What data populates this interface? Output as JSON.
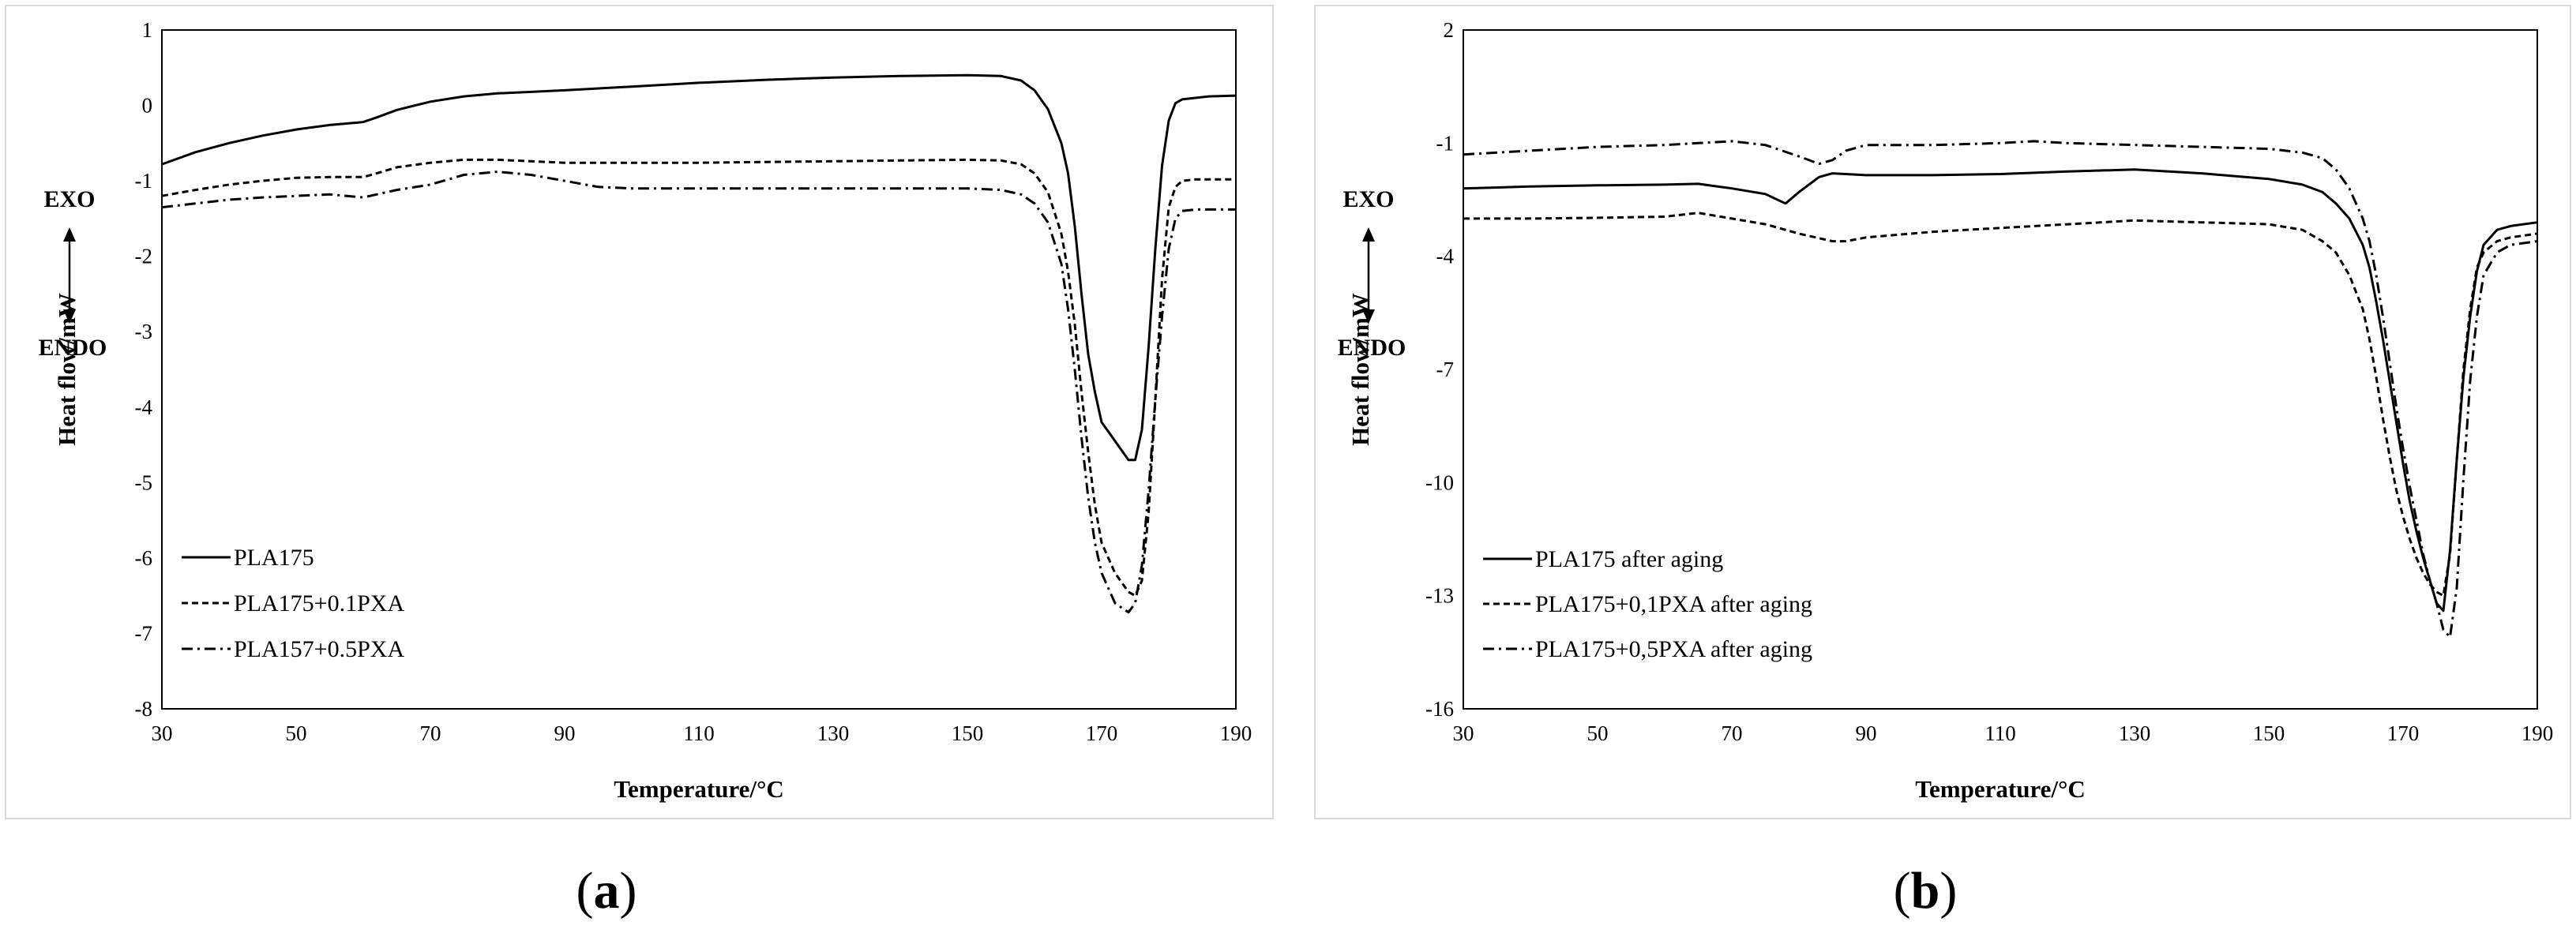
{
  "chart_data": [
    {
      "type": "line",
      "panel_label": {
        "open": "(",
        "letter": "a",
        "close": ")"
      },
      "xlabel": "Temperature/°C",
      "ylabel": "Heat flow/mW",
      "xlim": [
        30,
        190
      ],
      "ylim": [
        -8,
        1
      ],
      "xticks": [
        30,
        50,
        70,
        90,
        110,
        130,
        150,
        170,
        190
      ],
      "yticks": [
        -8,
        -7,
        -6,
        -5,
        -4,
        -3,
        -2,
        -1,
        0,
        1
      ],
      "grid": false,
      "legend_position": "bottom-left",
      "annotations": {
        "exo": "EXO",
        "endo": "ENDO"
      },
      "series": [
        {
          "name": "PLA175",
          "style": "solid",
          "x": [
            30,
            35,
            40,
            45,
            50,
            55,
            60,
            62,
            65,
            70,
            75,
            80,
            85,
            90,
            100,
            110,
            120,
            130,
            140,
            150,
            155,
            158,
            160,
            162,
            164,
            165,
            166,
            167,
            168,
            169,
            170,
            172,
            174,
            175,
            176,
            177,
            178,
            179,
            180,
            181,
            182,
            184,
            186,
            190
          ],
          "y": [
            -0.78,
            -0.62,
            -0.5,
            -0.4,
            -0.32,
            -0.26,
            -0.22,
            -0.16,
            -0.06,
            0.05,
            0.12,
            0.16,
            0.18,
            0.2,
            0.25,
            0.3,
            0.34,
            0.37,
            0.39,
            0.4,
            0.39,
            0.33,
            0.2,
            -0.05,
            -0.5,
            -0.9,
            -1.6,
            -2.5,
            -3.3,
            -3.8,
            -4.2,
            -4.45,
            -4.7,
            -4.7,
            -4.3,
            -3.2,
            -1.9,
            -0.8,
            -0.2,
            0.03,
            0.08,
            0.1,
            0.12,
            0.13
          ]
        },
        {
          "name": "PLA175+0.1PXA",
          "style": "dashed",
          "x": [
            30,
            35,
            40,
            45,
            50,
            55,
            60,
            62,
            65,
            70,
            75,
            80,
            85,
            90,
            100,
            110,
            120,
            130,
            140,
            150,
            155,
            158,
            160,
            162,
            164,
            165,
            166,
            167,
            168,
            169,
            170,
            172,
            174,
            175,
            176,
            177,
            178,
            179,
            180,
            181,
            182,
            184,
            186,
            190
          ],
          "y": [
            -1.2,
            -1.12,
            -1.05,
            -1.0,
            -0.96,
            -0.95,
            -0.95,
            -0.9,
            -0.82,
            -0.76,
            -0.72,
            -0.72,
            -0.74,
            -0.76,
            -0.76,
            -0.76,
            -0.75,
            -0.74,
            -0.73,
            -0.72,
            -0.73,
            -0.78,
            -0.9,
            -1.15,
            -1.7,
            -2.2,
            -2.9,
            -3.8,
            -4.6,
            -5.3,
            -5.8,
            -6.2,
            -6.45,
            -6.5,
            -6.3,
            -5.4,
            -3.9,
            -2.3,
            -1.35,
            -1.08,
            -1.0,
            -0.98,
            -0.98,
            -0.98
          ]
        },
        {
          "name": "PLA157+0.5PXA",
          "style": "dashdot",
          "x": [
            30,
            35,
            40,
            45,
            50,
            55,
            60,
            62,
            65,
            70,
            75,
            80,
            85,
            90,
            95,
            100,
            110,
            120,
            130,
            140,
            150,
            155,
            158,
            160,
            162,
            164,
            165,
            166,
            167,
            168,
            169,
            170,
            172,
            174,
            175,
            176,
            177,
            178,
            179,
            180,
            181,
            182,
            184,
            186,
            190
          ],
          "y": [
            -1.35,
            -1.3,
            -1.25,
            -1.22,
            -1.2,
            -1.18,
            -1.22,
            -1.18,
            -1.12,
            -1.05,
            -0.92,
            -0.88,
            -0.92,
            -1.0,
            -1.08,
            -1.1,
            -1.1,
            -1.1,
            -1.1,
            -1.1,
            -1.1,
            -1.12,
            -1.18,
            -1.3,
            -1.55,
            -2.1,
            -2.7,
            -3.5,
            -4.4,
            -5.2,
            -5.8,
            -6.2,
            -6.6,
            -6.72,
            -6.6,
            -6.1,
            -5.1,
            -3.9,
            -2.8,
            -1.9,
            -1.5,
            -1.4,
            -1.38,
            -1.38,
            -1.38
          ]
        }
      ]
    },
    {
      "type": "line",
      "panel_label": {
        "open": "(",
        "letter": "b",
        "close": ")"
      },
      "xlabel": "Temperature/°C",
      "ylabel": "Heat flow/mW",
      "xlim": [
        30,
        190
      ],
      "ylim": [
        -16,
        2
      ],
      "xticks": [
        30,
        50,
        70,
        90,
        110,
        130,
        150,
        170,
        190
      ],
      "yticks": [
        -16,
        -13,
        -10,
        -7,
        -4,
        -1,
        2
      ],
      "grid": false,
      "legend_position": "bottom-left",
      "annotations": {
        "exo": "EXO",
        "endo": "ENDO"
      },
      "series": [
        {
          "name": "PLA175 after aging",
          "style": "solid",
          "x": [
            30,
            40,
            50,
            60,
            65,
            70,
            75,
            78,
            80,
            83,
            85,
            90,
            100,
            110,
            120,
            130,
            140,
            150,
            155,
            158,
            160,
            162,
            164,
            165,
            166,
            167,
            168,
            169,
            170,
            171,
            172,
            173,
            174,
            175,
            176,
            177,
            178,
            179,
            180,
            181,
            182,
            184,
            186,
            190
          ],
          "y": [
            -2.2,
            -2.15,
            -2.12,
            -2.1,
            -2.08,
            -2.2,
            -2.35,
            -2.6,
            -2.3,
            -1.9,
            -1.8,
            -1.85,
            -1.85,
            -1.82,
            -1.75,
            -1.7,
            -1.8,
            -1.95,
            -2.1,
            -2.3,
            -2.6,
            -3.0,
            -3.7,
            -4.3,
            -5.2,
            -6.2,
            -7.3,
            -8.4,
            -9.5,
            -10.5,
            -11.3,
            -12.0,
            -12.6,
            -13.2,
            -13.4,
            -11.8,
            -9.4,
            -7.2,
            -5.6,
            -4.4,
            -3.7,
            -3.3,
            -3.2,
            -3.1
          ]
        },
        {
          "name": "PLA175+0,1PXA after aging",
          "style": "dashed",
          "x": [
            30,
            40,
            50,
            60,
            65,
            70,
            75,
            80,
            85,
            87,
            90,
            100,
            110,
            120,
            130,
            140,
            150,
            155,
            158,
            160,
            162,
            164,
            165,
            166,
            167,
            168,
            169,
            170,
            171,
            172,
            173,
            174,
            175,
            176,
            177,
            178,
            179,
            180,
            181,
            182,
            184,
            186,
            190
          ],
          "y": [
            -3.0,
            -3.0,
            -2.98,
            -2.95,
            -2.85,
            -3.0,
            -3.15,
            -3.4,
            -3.6,
            -3.6,
            -3.5,
            -3.35,
            -3.25,
            -3.15,
            -3.05,
            -3.1,
            -3.15,
            -3.3,
            -3.6,
            -3.9,
            -4.5,
            -5.4,
            -6.2,
            -7.2,
            -8.3,
            -9.3,
            -10.2,
            -10.9,
            -11.5,
            -12.0,
            -12.4,
            -12.7,
            -12.9,
            -13.0,
            -11.9,
            -9.4,
            -7.0,
            -5.4,
            -4.3,
            -3.9,
            -3.6,
            -3.5,
            -3.4
          ]
        },
        {
          "name": "PLA175+0,5PXA after aging",
          "style": "dashdot",
          "x": [
            30,
            40,
            50,
            60,
            65,
            70,
            75,
            80,
            83,
            85,
            87,
            90,
            100,
            110,
            115,
            120,
            130,
            140,
            150,
            155,
            158,
            160,
            162,
            164,
            165,
            166,
            167,
            168,
            169,
            170,
            171,
            172,
            173,
            174,
            175,
            176,
            177,
            178,
            179,
            180,
            181,
            182,
            184,
            186,
            190
          ],
          "y": [
            -1.3,
            -1.2,
            -1.1,
            -1.05,
            -1.0,
            -0.95,
            -1.05,
            -1.35,
            -1.55,
            -1.45,
            -1.2,
            -1.05,
            -1.05,
            -1.0,
            -0.95,
            -1.0,
            -1.05,
            -1.1,
            -1.15,
            -1.25,
            -1.4,
            -1.7,
            -2.2,
            -3.0,
            -3.6,
            -4.5,
            -5.6,
            -6.8,
            -8.0,
            -9.1,
            -10.1,
            -11.0,
            -11.9,
            -12.6,
            -13.2,
            -13.9,
            -14.1,
            -12.8,
            -9.9,
            -7.3,
            -5.6,
            -4.5,
            -3.9,
            -3.7,
            -3.6
          ]
        }
      ]
    }
  ]
}
